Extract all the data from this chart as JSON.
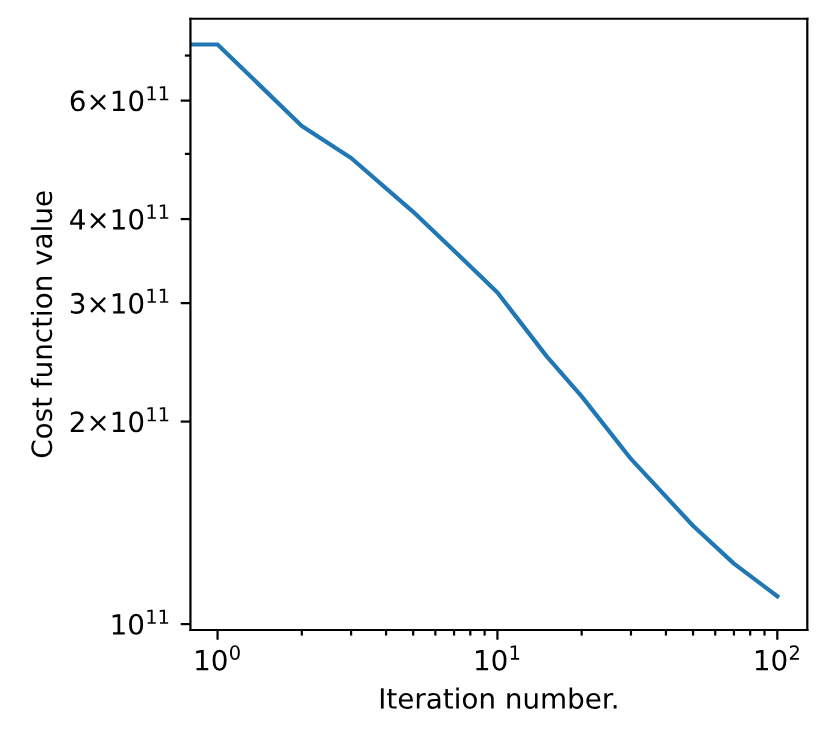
{
  "chart_data": {
    "type": "line",
    "xlabel": "Iteration number.",
    "ylabel": "Cost function value",
    "log": "xy",
    "grid": false,
    "legend": false,
    "x": [
      0.81,
      1,
      2,
      3,
      5,
      7,
      10,
      15,
      20,
      30,
      50,
      70,
      100
    ],
    "series": [
      {
        "color": "#1f77b4",
        "values": [
          727000000000.0,
          727000000000.0,
          550000000000.0,
          493000000000.0,
          410000000000.0,
          359000000000.0,
          311000000000.0,
          250000000000.0,
          218000000000.0,
          176000000000.0,
          140000000000.0,
          123000000000.0,
          110000000000.0
        ]
      }
    ],
    "xlim": [
      0.8,
      128
    ],
    "ylim": [
      98000000000.0,
      794000000000.0
    ],
    "xticks": [
      {
        "value": 1,
        "label": "10$^{0}$"
      },
      {
        "value": 2,
        "label": null
      },
      {
        "value": 3,
        "label": null
      },
      {
        "value": 4,
        "label": null
      },
      {
        "value": 5,
        "label": null
      },
      {
        "value": 6,
        "label": null
      },
      {
        "value": 7,
        "label": null
      },
      {
        "value": 8,
        "label": null
      },
      {
        "value": 9,
        "label": null
      },
      {
        "value": 10,
        "label": "10$^{1}$"
      },
      {
        "value": 20,
        "label": null
      },
      {
        "value": 30,
        "label": null
      },
      {
        "value": 40,
        "label": null
      },
      {
        "value": 50,
        "label": null
      },
      {
        "value": 60,
        "label": null
      },
      {
        "value": 70,
        "label": null
      },
      {
        "value": 80,
        "label": null
      },
      {
        "value": 90,
        "label": null
      },
      {
        "value": 100,
        "label": "10$^{2}$"
      }
    ],
    "yticks": [
      {
        "value": 100000000000.0,
        "label": "10$^{11}$"
      },
      {
        "value": 200000000000.0,
        "label": "2×10$^{11}$"
      },
      {
        "value": 300000000000.0,
        "label": "3×10$^{11}$"
      },
      {
        "value": 400000000000.0,
        "label": "4×10$^{11}$"
      },
      {
        "value": 500000000000.0,
        "label": null
      },
      {
        "value": 600000000000.0,
        "label": "6×10$^{11}$"
      },
      {
        "value": 700000000000.0,
        "label": null
      }
    ],
    "marker": "none",
    "line_style": "solid"
  }
}
